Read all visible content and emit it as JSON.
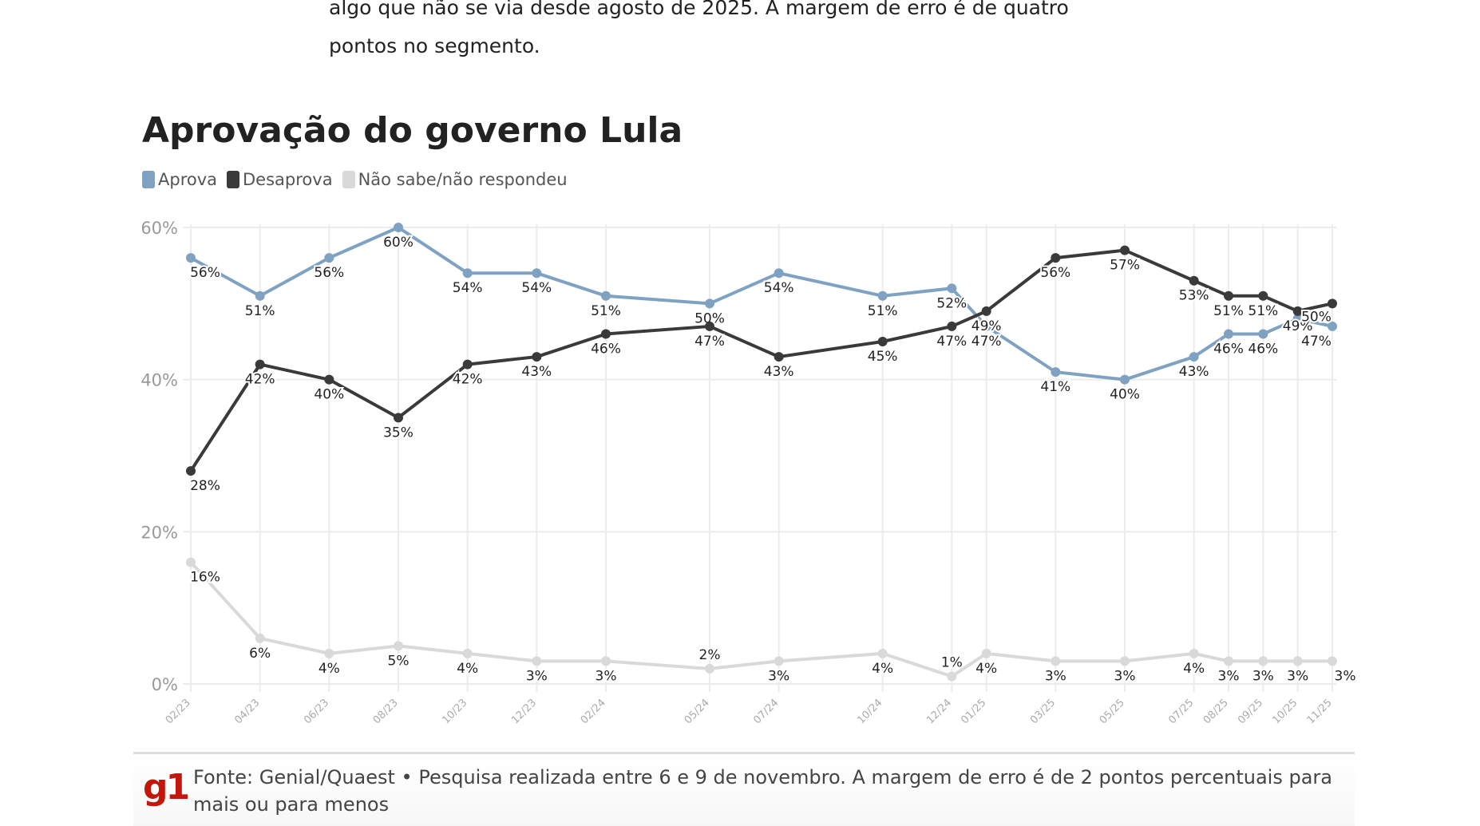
{
  "article": {
    "paragraph_lines": [
      "algo que não se via desde agosto de 2025. A margem de erro é de quatro",
      "pontos no segmento."
    ]
  },
  "chart_data": {
    "type": "line",
    "title": "Aprovação do governo Lula",
    "legend_position": "top-left",
    "grid": true,
    "ylim": [
      0,
      60
    ],
    "yticks": [
      "0%",
      "20%",
      "40%",
      "60%"
    ],
    "ytick_values": [
      0,
      20,
      40,
      60
    ],
    "categories": [
      "02/23",
      "04/23",
      "06/23",
      "08/23",
      "10/23",
      "12/23",
      "02/24",
      "05/24",
      "07/24",
      "10/24",
      "12/24",
      "01/25",
      "03/25",
      "05/25",
      "07/25",
      "08/25",
      "09/25",
      "10/25",
      "11/25"
    ],
    "series": [
      {
        "name": "Aprova",
        "color": "#7fa2c3",
        "values": [
          56,
          51,
          56,
          60,
          54,
          54,
          51,
          50,
          54,
          51,
          52,
          47,
          41,
          40,
          43,
          46,
          46,
          48,
          47
        ]
      },
      {
        "name": "Desaprova",
        "color": "#3a3a3a",
        "values": [
          28,
          42,
          40,
          35,
          42,
          43,
          46,
          47,
          43,
          45,
          47,
          49,
          56,
          57,
          53,
          51,
          51,
          49,
          50
        ]
      },
      {
        "name": "Não sabe/não respondeu",
        "color": "#d9d9d9",
        "values": [
          16,
          6,
          4,
          5,
          4,
          3,
          3,
          2,
          3,
          4,
          1,
          4,
          3,
          3,
          4,
          3,
          3,
          3,
          3
        ]
      }
    ]
  },
  "footer": {
    "logo": "g1",
    "source": "Fonte: Genial/Quaest • Pesquisa realizada entre 6 e 9 de novembro. A margem de erro é de 2 pontos percentuais para mais ou para menos"
  }
}
